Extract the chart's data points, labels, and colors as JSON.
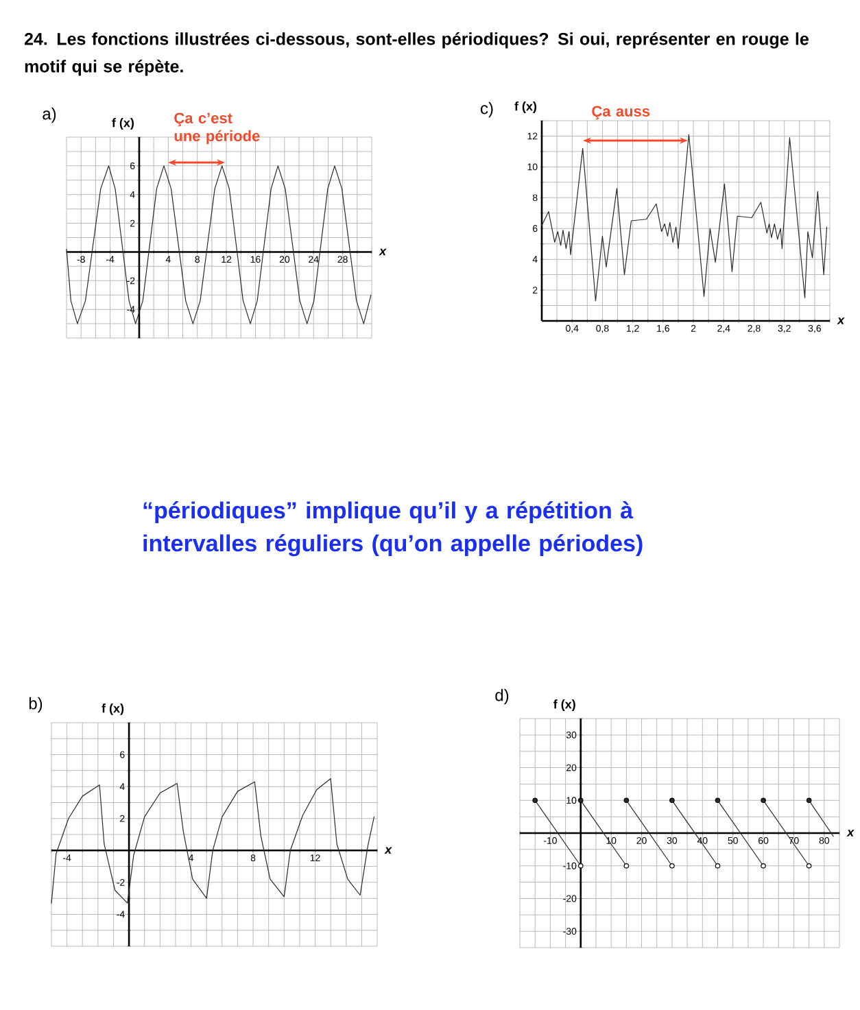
{
  "chart_data": [
    {
      "type": "other",
      "title": "24. Les fonctions illustrées ci-dessous, sont-elles périodiques? Si oui, représenter en rouge le motif qui se répète.",
      "annotations": [
        "“périodiques” implique qu’il y a répétition à intervalles réguliers (qu’on appelle périodes)"
      ]
    },
    {
      "type": "line",
      "title": "a)",
      "xlabel": "x",
      "ylabel": "f (x)",
      "grid": true,
      "series": [
        {
          "color": "#2b2b2b",
          "x": [
            -10,
            -9.4,
            -8.5,
            -7.4,
            -6.35,
            -5.3,
            -4.2,
            -3.3,
            -2.35,
            -1.4,
            -0.5,
            0.5,
            1.45,
            2.4,
            3.4,
            4.4,
            5.4,
            6.4,
            7.4,
            8.4,
            9.4,
            10.4,
            11.4,
            12.4,
            13.35,
            14.3,
            15.3,
            16.25,
            17.2,
            18.15,
            19.1,
            20.1,
            21.1,
            22.1,
            23.1,
            24.05,
            25,
            25.95,
            26.9,
            27.9,
            28.9,
            29.9,
            30.9,
            31.9
          ],
          "values": [
            0.2,
            -3.4,
            -5,
            -3.4,
            0.5,
            4.4,
            6,
            4.4,
            0.5,
            -3.4,
            -5,
            -3.4,
            0.5,
            4.4,
            6,
            4.4,
            0.5,
            -3.4,
            -5,
            -3.4,
            0.5,
            4.4,
            6,
            4.4,
            0.5,
            -3.4,
            -5,
            -3.4,
            0.5,
            4.4,
            6,
            4.4,
            0.5,
            -3.4,
            -5,
            -3.4,
            0.5,
            4.4,
            6,
            4.4,
            0.5,
            -3.4,
            -5,
            -3
          ]
        }
      ],
      "xlim": [
        -10,
        32
      ],
      "ylim": [
        -6,
        8
      ],
      "xticks": [
        {
          "value": -10,
          "label": null
        },
        -8,
        {
          "value": -6,
          "label": null
        },
        -4,
        {
          "value": -2,
          "label": null
        },
        {
          "value": 0,
          "label": null
        },
        {
          "value": 2,
          "label": null
        },
        4,
        {
          "value": 6,
          "label": null
        },
        8,
        {
          "value": 10,
          "label": null
        },
        12,
        {
          "value": 14,
          "label": null
        },
        16,
        {
          "value": 18,
          "label": null
        },
        20,
        {
          "value": 22,
          "label": null
        },
        24,
        {
          "value": 26,
          "label": null
        },
        28,
        {
          "value": 30,
          "label": null
        },
        {
          "value": 32,
          "label": null
        }
      ],
      "yticks": [
        {
          "value": -6,
          "label": null
        },
        {
          "value": -5,
          "label": null
        },
        -4,
        {
          "value": -3,
          "label": null
        },
        -2,
        {
          "value": -1,
          "label": null
        },
        {
          "value": 0,
          "label": null
        },
        {
          "value": 1,
          "label": null
        },
        2,
        {
          "value": 3,
          "label": null
        },
        4,
        {
          "value": 5,
          "label": null
        },
        6,
        {
          "value": 7,
          "label": null
        },
        {
          "value": 8,
          "label": null
        }
      ],
      "annotations": [
        "Ça c’est une période"
      ]
    },
    {
      "type": "line",
      "title": "c)",
      "xlabel": "x",
      "ylabel": "f (x)",
      "grid": true,
      "series": [
        {
          "color": "#2b2b2b",
          "x": [
            0,
            0.09,
            0.17,
            0.21,
            0.25,
            0.28,
            0.32,
            0.36,
            0.38,
            0.54,
            0.71,
            0.8,
            0.85,
            0.99,
            1.09,
            1.18,
            1.38,
            1.51,
            1.58,
            1.62,
            1.66,
            1.69,
            1.73,
            1.77,
            1.8,
            1.94,
            2.14,
            2.22,
            2.29,
            2.41,
            2.51,
            2.58,
            2.77,
            2.89,
            2.97,
            3.0,
            3.03,
            3.07,
            3.11,
            3.15,
            3.17,
            3.27,
            3.47,
            3.51,
            3.57,
            3.64,
            3.72,
            3.76
          ],
          "values": [
            6.2,
            7.1,
            5.1,
            5.8,
            4.9,
            5.9,
            4.7,
            5.8,
            4.3,
            11.2,
            1.3,
            5.5,
            3.5,
            8.6,
            3.0,
            6.5,
            6.6,
            7.6,
            5.8,
            6.3,
            5.5,
            6.4,
            5.1,
            6.1,
            4.7,
            12.1,
            1.6,
            6.0,
            3.8,
            8.9,
            3.2,
            6.8,
            6.7,
            7.7,
            5.7,
            6.3,
            5.4,
            6.3,
            5.3,
            6.0,
            4.7,
            11.9,
            1.5,
            5.8,
            4.1,
            8.4,
            3.0,
            6.1
          ]
        }
      ],
      "xlim": [
        0,
        3.8
      ],
      "ylim": [
        0,
        13
      ],
      "xticks": [
        {
          "value": 0,
          "label": null
        },
        {
          "value": 0.2,
          "label": null
        },
        {
          "value": 0.4,
          "label": "0,4"
        },
        {
          "value": 0.6,
          "label": null
        },
        {
          "value": 0.8,
          "label": "0,8"
        },
        {
          "value": 1.0,
          "label": null
        },
        {
          "value": 1.2,
          "label": "1,2"
        },
        {
          "value": 1.4,
          "label": null
        },
        {
          "value": 1.6,
          "label": "1,6"
        },
        {
          "value": 1.8,
          "label": null
        },
        2,
        {
          "value": 2.2,
          "label": null
        },
        {
          "value": 2.4,
          "label": "2,4"
        },
        {
          "value": 2.6,
          "label": null
        },
        {
          "value": 2.8,
          "label": "2,8"
        },
        {
          "value": 3.0,
          "label": null
        },
        {
          "value": 3.2,
          "label": "3,2"
        },
        {
          "value": 3.4,
          "label": null
        },
        {
          "value": 3.6,
          "label": "3,6"
        },
        {
          "value": 3.8,
          "label": null
        }
      ],
      "yticks": [
        {
          "value": 0,
          "label": null
        },
        {
          "value": 1,
          "label": null
        },
        2,
        {
          "value": 3,
          "label": null
        },
        4,
        {
          "value": 5,
          "label": null
        },
        6,
        {
          "value": 7,
          "label": null
        },
        8,
        {
          "value": 9,
          "label": null
        },
        10,
        {
          "value": 11,
          "label": null
        },
        12,
        {
          "value": 13,
          "label": null
        }
      ],
      "annotations": [
        "Ça auss"
      ]
    },
    {
      "type": "line",
      "title": "b)",
      "xlabel": "x",
      "ylabel": "f (x)",
      "color": "#2b2b2b",
      "grid": true,
      "x": [
        -5,
        -4.7,
        -3.9,
        -3.0,
        -1.9,
        -1.6,
        -0.9,
        -0.1,
        0.3,
        1.0,
        2.0,
        3.1,
        3.5,
        4.1,
        5.0,
        5.4,
        6.0,
        7.0,
        8.1,
        8.5,
        9.1,
        10.0,
        10.4,
        11.2,
        12.1,
        13.0,
        13.4,
        14.1,
        14.9,
        15.4,
        15.8
      ],
      "values": [
        -3.3,
        -0.2,
        2,
        3.4,
        4.1,
        0.4,
        -2.5,
        -3.3,
        -0.3,
        2.1,
        3.6,
        4.2,
        1.2,
        -1.8,
        -3.0,
        0,
        2.1,
        3.7,
        4.3,
        0.9,
        -1.8,
        -2.9,
        0,
        2.2,
        3.8,
        4.5,
        0.4,
        -1.8,
        -2.8,
        0.3,
        2.1
      ],
      "xlim": [
        -5,
        16
      ],
      "ylim": [
        -6,
        8
      ],
      "xticks": [
        {
          "value": -5,
          "label": null
        },
        -4,
        {
          "value": -3,
          "label": null
        },
        {
          "value": -2,
          "label": null
        },
        {
          "value": -1,
          "label": null
        },
        {
          "value": 0,
          "label": null
        },
        {
          "value": 1,
          "label": null
        },
        {
          "value": 2,
          "label": null
        },
        {
          "value": 3,
          "label": null
        },
        4,
        {
          "value": 5,
          "label": null
        },
        {
          "value": 6,
          "label": null
        },
        {
          "value": 7,
          "label": null
        },
        8,
        {
          "value": 9,
          "label": null
        },
        {
          "value": 10,
          "label": null
        },
        {
          "value": 11,
          "label": null
        },
        12,
        {
          "value": 13,
          "label": null
        },
        {
          "value": 14,
          "label": null
        },
        {
          "value": 15,
          "label": null
        },
        {
          "value": 16,
          "label": null
        }
      ],
      "yticks": [
        {
          "value": -6,
          "label": null
        },
        {
          "value": -5,
          "label": null
        },
        -4,
        {
          "value": -3,
          "label": null
        },
        -2,
        {
          "value": -1,
          "label": null
        },
        {
          "value": 0,
          "label": null
        },
        {
          "value": 1,
          "label": null
        },
        2,
        {
          "value": 3,
          "label": null
        },
        4,
        {
          "value": 5,
          "label": null
        },
        6,
        {
          "value": 7,
          "label": null
        },
        {
          "value": 8,
          "label": null
        }
      ]
    },
    {
      "type": "line",
      "title": "d)",
      "xlabel": "x",
      "ylabel": "f (x)",
      "grid": true,
      "series": [
        {
          "type": "line",
          "color": "#2b2b2b",
          "x": [
            -15,
            0
          ],
          "values": [
            10,
            -10
          ]
        },
        {
          "type": "line",
          "color": "#2b2b2b",
          "x": [
            0,
            15
          ],
          "values": [
            10,
            -10
          ]
        },
        {
          "type": "line",
          "color": "#2b2b2b",
          "x": [
            15,
            30
          ],
          "values": [
            10,
            -10
          ]
        },
        {
          "type": "line",
          "color": "#2b2b2b",
          "x": [
            30,
            45
          ],
          "values": [
            10,
            -10
          ]
        },
        {
          "type": "line",
          "color": "#2b2b2b",
          "x": [
            45,
            60
          ],
          "values": [
            10,
            -10
          ]
        },
        {
          "type": "line",
          "color": "#2b2b2b",
          "x": [
            60,
            75
          ],
          "values": [
            10,
            -10
          ]
        },
        {
          "type": "line",
          "color": "#2b2b2b",
          "x": [
            75,
            83
          ],
          "values": [
            10,
            -1
          ]
        },
        {
          "type": "scatter",
          "marker": "circle",
          "color": "#2b2b2b",
          "x": [
            -15,
            0,
            15,
            30,
            45,
            60,
            75
          ],
          "values": [
            10,
            10,
            10,
            10,
            10,
            10,
            10
          ]
        },
        {
          "type": "scatter",
          "marker": "circle",
          "color": "#ffffff",
          "x": [
            0,
            15,
            30,
            45,
            60,
            75
          ],
          "values": [
            -10,
            -10,
            -10,
            -10,
            -10,
            -10
          ]
        }
      ],
      "xlim": [
        -20,
        85
      ],
      "ylim": [
        -35,
        35
      ],
      "xticks": [
        {
          "value": -20,
          "label": null
        },
        {
          "value": -15,
          "label": null
        },
        -10,
        {
          "value": -5,
          "label": null
        },
        {
          "value": 0,
          "label": null
        },
        {
          "value": 5,
          "label": null
        },
        10,
        {
          "value": 15,
          "label": null
        },
        20,
        {
          "value": 25,
          "label": null
        },
        30,
        {
          "value": 35,
          "label": null
        },
        40,
        {
          "value": 45,
          "label": null
        },
        50,
        {
          "value": 55,
          "label": null
        },
        60,
        {
          "value": 65,
          "label": null
        },
        70,
        {
          "value": 75,
          "label": null
        },
        80,
        {
          "value": 85,
          "label": null
        }
      ],
      "yticks": [
        {
          "value": -35,
          "label": null
        },
        -30,
        {
          "value": -25,
          "label": null
        },
        -20,
        {
          "value": -15,
          "label": null
        },
        -10,
        {
          "value": -5,
          "label": null
        },
        {
          "value": 0,
          "label": null
        },
        {
          "value": 5,
          "label": null
        },
        10,
        {
          "value": 15,
          "label": null
        },
        20,
        {
          "value": 25,
          "label": null
        },
        30,
        {
          "value": 35,
          "label": null
        }
      ]
    }
  ]
}
